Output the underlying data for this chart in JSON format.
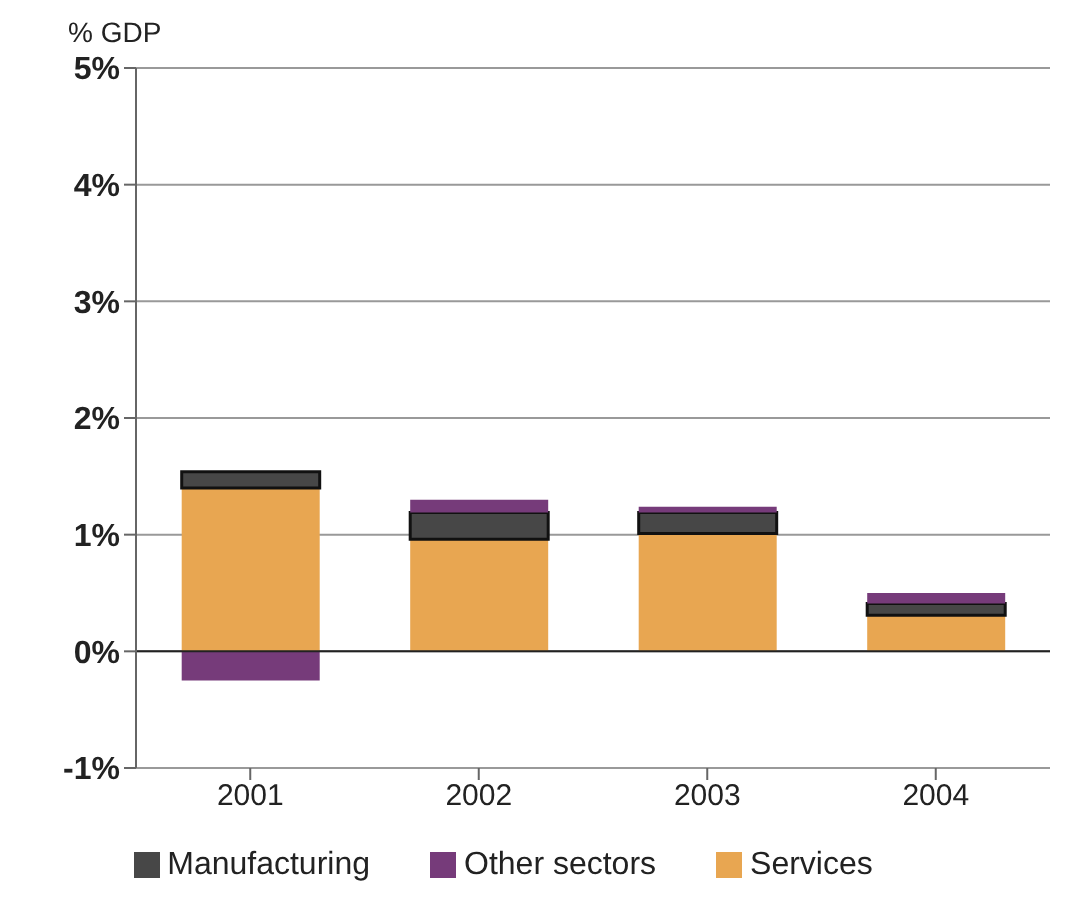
{
  "chart_data": {
    "type": "bar",
    "ylabel": "% GDP",
    "categories": [
      "2001",
      "2002",
      "2003",
      "2004"
    ],
    "series": [
      {
        "name": "Services",
        "color": "#e8a651",
        "values": [
          1.4,
          0.96,
          1.01,
          0.31
        ]
      },
      {
        "name": "Manufacturing",
        "color": "#474747",
        "values": [
          0.14,
          0.23,
          0.18,
          0.1
        ]
      },
      {
        "name": "Other sectors",
        "color": "#763b7a",
        "values": [
          -0.25,
          0.11,
          0.05,
          0.09
        ]
      }
    ],
    "stacked": true,
    "ylim": [
      -1,
      5
    ],
    "yticks": [
      {
        "value": -1,
        "label": "-1%"
      },
      {
        "value": 0,
        "label": "0%"
      },
      {
        "value": 1,
        "label": "1%"
      },
      {
        "value": 2,
        "label": "2%"
      },
      {
        "value": 3,
        "label": "3%"
      },
      {
        "value": 4,
        "label": "4%"
      },
      {
        "value": 5,
        "label": "5%"
      }
    ],
    "grid": "y",
    "legend": "bottom"
  }
}
